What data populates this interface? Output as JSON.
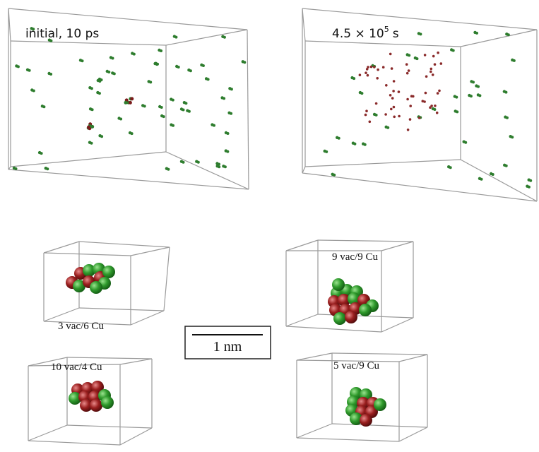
{
  "panels": [
    {
      "label": "initial, 10 ps"
    },
    {
      "label": {
        "base": "4.5 × 10",
        "exponent": "5",
        "unit": "s"
      }
    }
  ],
  "clusters": [
    {
      "label": "3 vac/6 Cu"
    },
    {
      "label": "9 vac/9 Cu"
    },
    {
      "label": "10 vac/4 Cu"
    },
    {
      "label": "5 vac/9 Cu"
    }
  ],
  "scale_bar": {
    "label": "1 nm"
  }
}
